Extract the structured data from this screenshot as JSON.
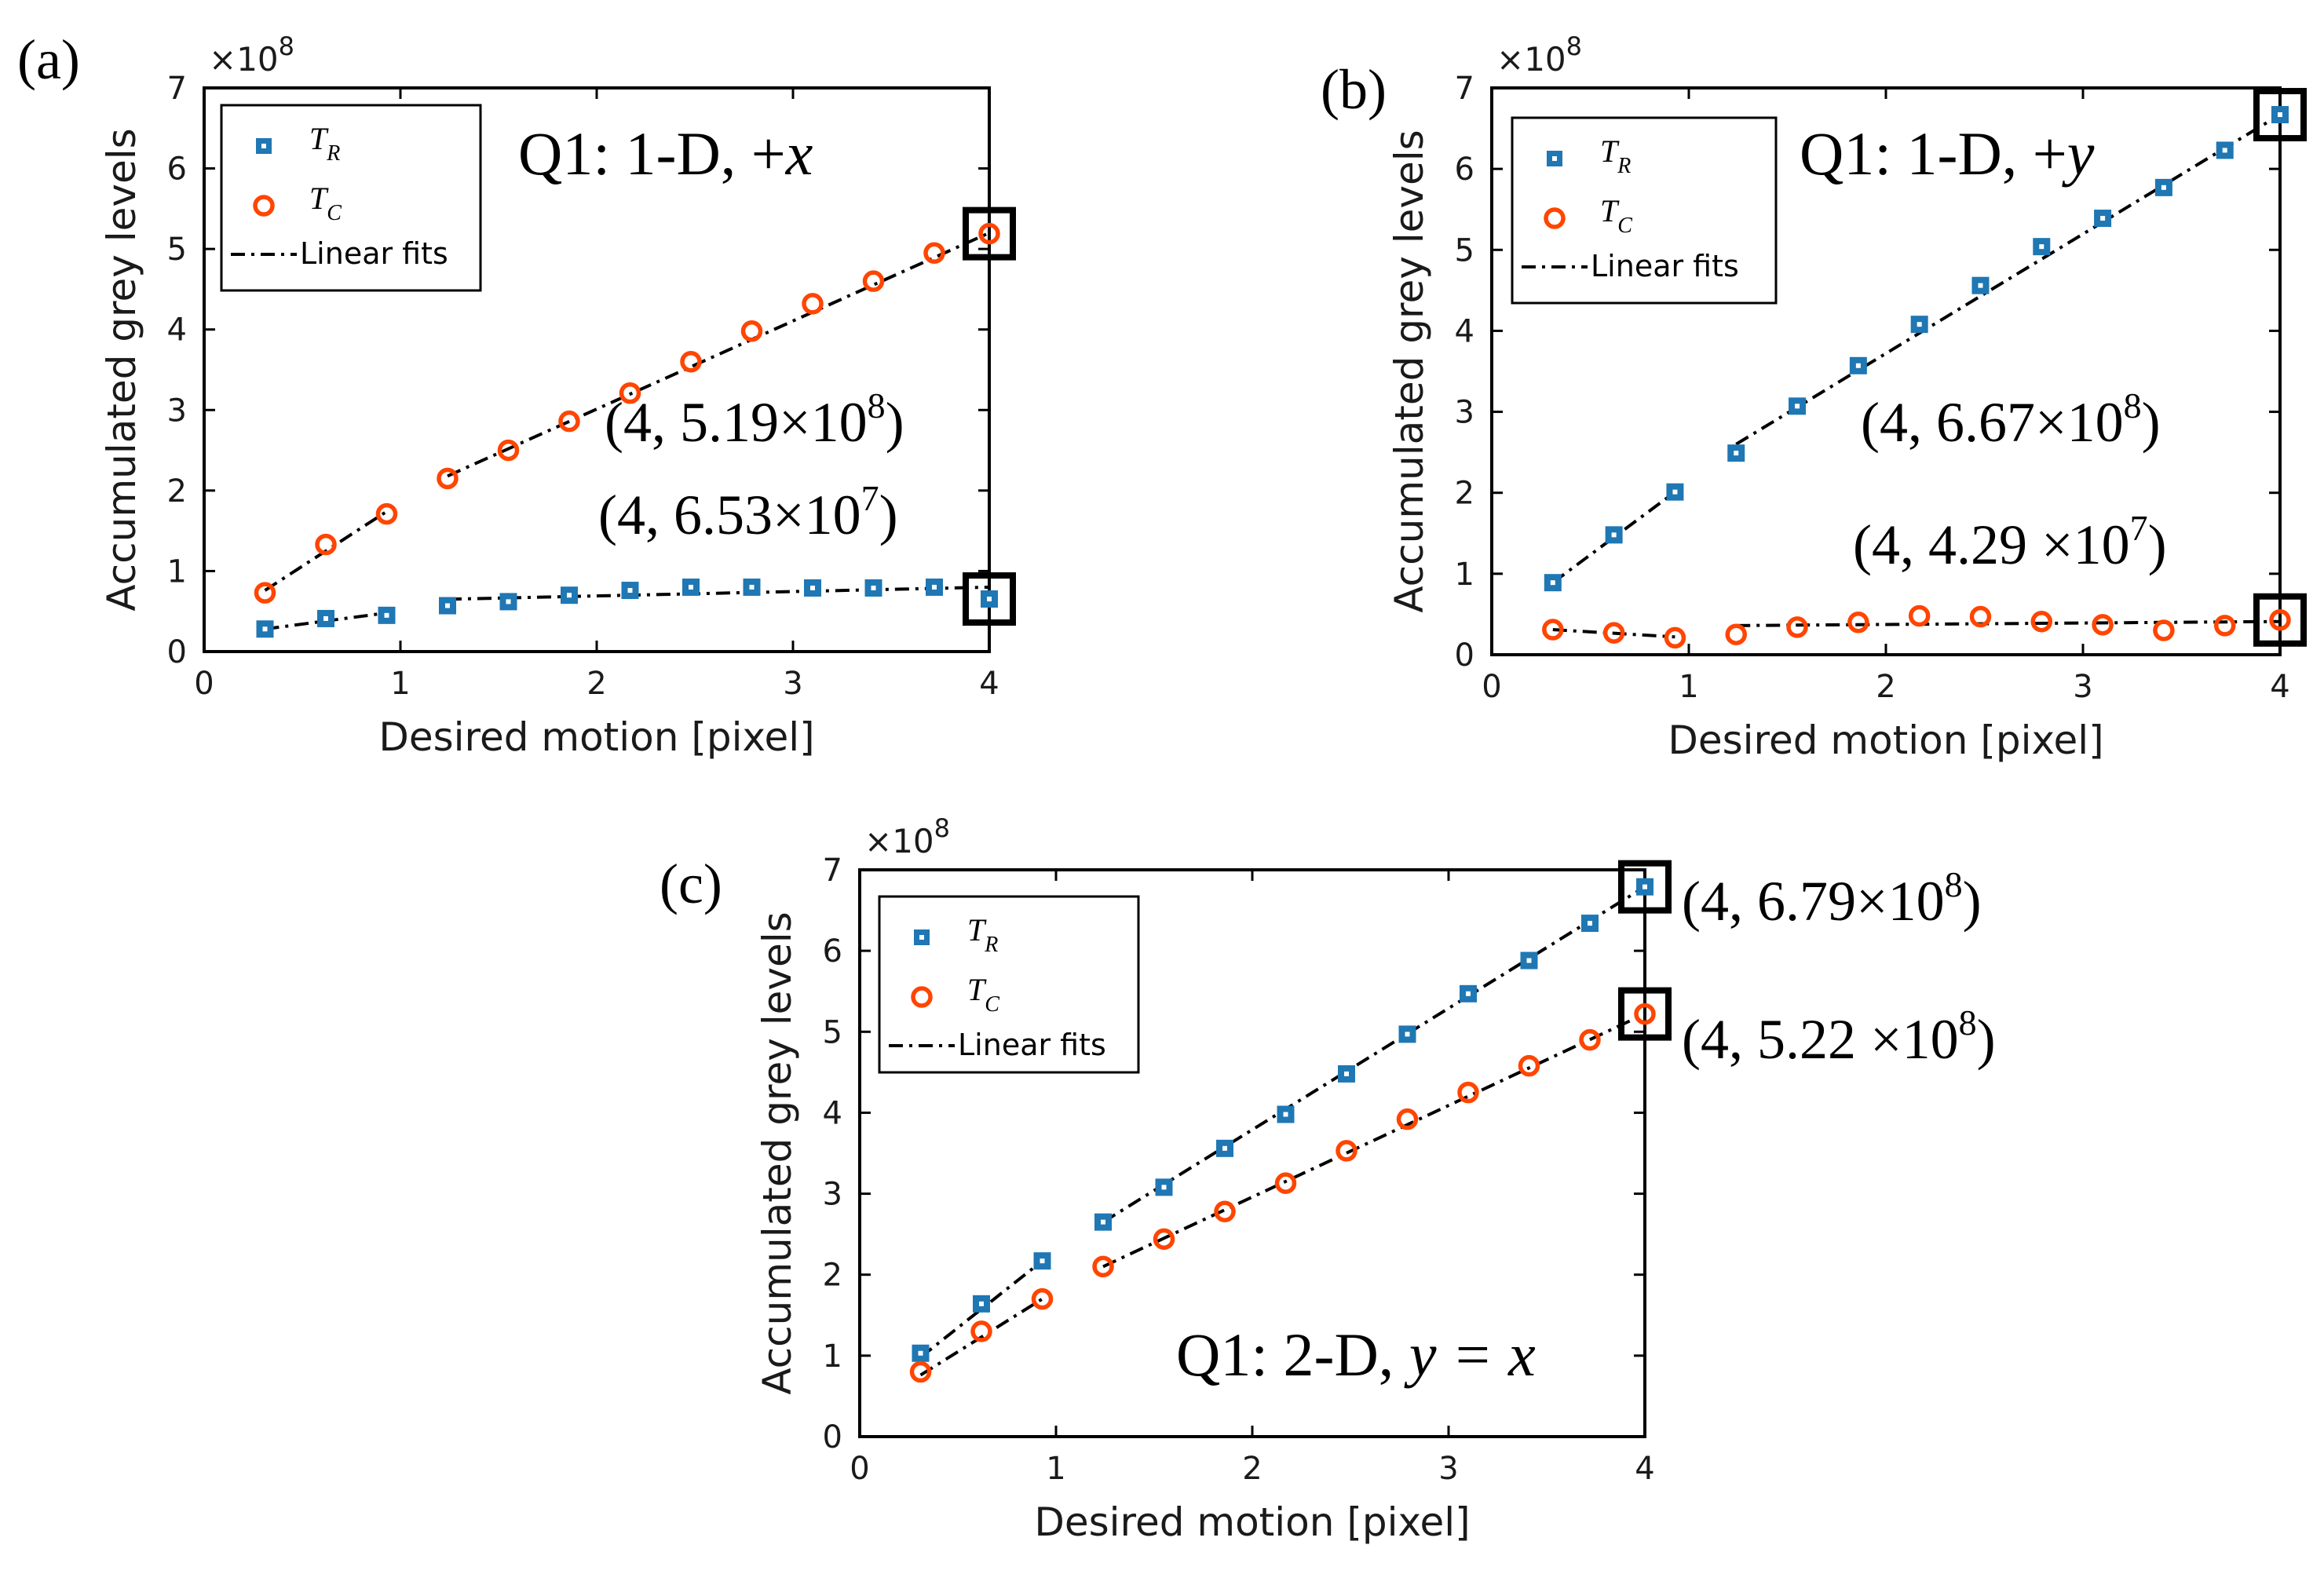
{
  "colors": {
    "tr": "#1f77b4",
    "tc": "#ff4500",
    "fit": "#000000",
    "axis": "#000000"
  },
  "chart_data": [
    {
      "id": "a",
      "type": "scatter",
      "panel_label": "(a)",
      "title": "Q1: 1-D, +x",
      "title_prefix": "Q1: 1-D, +",
      "title_var": "x",
      "xlabel": "Desired motion [pixel]",
      "ylabel": "Accumulated grey levels",
      "xlim": [
        0,
        4
      ],
      "ylim": [
        0,
        7
      ],
      "xticks": [
        0,
        1,
        2,
        3,
        4
      ],
      "yticks": [
        0,
        1,
        2,
        3,
        4,
        5,
        6,
        7
      ],
      "y_exponent": "×10",
      "y_exponent_power": "8",
      "legend": {
        "position": "top-left",
        "entries": [
          "T_R",
          "T_C",
          "Linear fits"
        ],
        "tr_main": "T",
        "tr_sub": "R",
        "tc_main": "T",
        "tc_sub": "C",
        "fit_label": "Linear fits"
      },
      "series": [
        {
          "name": "T_R",
          "x": [
            0.31,
            0.62,
            0.93,
            1.24,
            1.55,
            1.86,
            2.17,
            2.48,
            2.79,
            3.1,
            3.41,
            3.72,
            4.0
          ],
          "y": [
            0.28,
            0.41,
            0.45,
            0.57,
            0.62,
            0.7,
            0.76,
            0.8,
            0.8,
            0.79,
            0.79,
            0.8,
            0.653
          ]
        },
        {
          "name": "T_C",
          "x": [
            0.31,
            0.62,
            0.93,
            1.24,
            1.55,
            1.86,
            2.17,
            2.48,
            2.79,
            3.1,
            3.41,
            3.72,
            4.0
          ],
          "y": [
            0.73,
            1.33,
            1.71,
            2.15,
            2.5,
            2.86,
            3.21,
            3.6,
            3.98,
            4.32,
            4.6,
            4.95,
            5.19
          ]
        }
      ],
      "fits": [
        {
          "series": "T_R",
          "x": [
            0.31,
            0.93
          ],
          "y": [
            0.28,
            0.48
          ]
        },
        {
          "series": "T_R",
          "x": [
            1.24,
            4.0
          ],
          "y": [
            0.65,
            0.8
          ]
        },
        {
          "series": "T_C",
          "x": [
            0.31,
            0.93
          ],
          "y": [
            0.76,
            1.74
          ]
        },
        {
          "series": "T_C",
          "x": [
            1.24,
            4.0
          ],
          "y": [
            2.18,
            5.2
          ]
        }
      ],
      "highlights": [
        {
          "x": 4,
          "y": 5.19
        },
        {
          "x": 4,
          "y": 0.653
        }
      ],
      "annotations": [
        {
          "text": "(4, 5.19×10",
          "power": "8",
          "close": ")"
        },
        {
          "text": "(4, 6.53×10",
          "power": "7",
          "close": ")"
        }
      ]
    },
    {
      "id": "b",
      "type": "scatter",
      "panel_label": "(b)",
      "title": "Q1: 1-D, +y",
      "title_prefix": "Q1: 1-D, +",
      "title_var": "y",
      "xlabel": "Desired motion [pixel]",
      "ylabel": "Accumulated grey levels",
      "xlim": [
        0,
        4
      ],
      "ylim": [
        0,
        7
      ],
      "xticks": [
        0,
        1,
        2,
        3,
        4
      ],
      "yticks": [
        0,
        1,
        2,
        3,
        4,
        5,
        6,
        7
      ],
      "y_exponent": "×10",
      "y_exponent_power": "8",
      "legend": {
        "position": "top-left",
        "entries": [
          "T_R",
          "T_C",
          "Linear fits"
        ],
        "tr_main": "T",
        "tr_sub": "R",
        "tc_main": "T",
        "tc_sub": "C",
        "fit_label": "Linear fits"
      },
      "series": [
        {
          "name": "T_R",
          "x": [
            0.31,
            0.62,
            0.93,
            1.24,
            1.55,
            1.86,
            2.17,
            2.48,
            2.79,
            3.1,
            3.41,
            3.72,
            4.0
          ],
          "y": [
            0.89,
            1.48,
            2.01,
            2.49,
            3.07,
            3.57,
            4.08,
            4.56,
            5.04,
            5.39,
            5.77,
            6.23,
            6.67
          ]
        },
        {
          "name": "T_C",
          "x": [
            0.31,
            0.62,
            0.93,
            1.24,
            1.55,
            1.86,
            2.17,
            2.48,
            2.79,
            3.1,
            3.41,
            3.72,
            4.0
          ],
          "y": [
            0.31,
            0.27,
            0.21,
            0.25,
            0.34,
            0.4,
            0.48,
            0.47,
            0.41,
            0.37,
            0.3,
            0.36,
            0.429
          ]
        }
      ],
      "fits": [
        {
          "series": "T_R",
          "x": [
            0.31,
            0.93
          ],
          "y": [
            0.89,
            2.01
          ]
        },
        {
          "series": "T_R",
          "x": [
            1.24,
            4.0
          ],
          "y": [
            2.6,
            6.67
          ]
        },
        {
          "series": "T_C",
          "x": [
            0.31,
            0.93
          ],
          "y": [
            0.31,
            0.22
          ]
        },
        {
          "series": "T_C",
          "x": [
            1.24,
            4.0
          ],
          "y": [
            0.36,
            0.41
          ]
        }
      ],
      "highlights": [
        {
          "x": 4,
          "y": 6.67
        },
        {
          "x": 4,
          "y": 0.429
        }
      ],
      "annotations": [
        {
          "text": "(4, 6.67×10",
          "power": "8",
          "close": ")"
        },
        {
          "text": "(4, 4.29 ×10",
          "power": "7",
          "close": ")"
        }
      ]
    },
    {
      "id": "c",
      "type": "scatter",
      "panel_label": "(c)",
      "title": "Q1: 2-D, y = x",
      "title_prefix": "Q1: 2-D, ",
      "title_var": "y = x",
      "xlabel": "Desired motion [pixel]",
      "ylabel": "Accumulated grey levels",
      "xlim": [
        0,
        4
      ],
      "ylim": [
        0,
        7
      ],
      "xticks": [
        0,
        1,
        2,
        3,
        4
      ],
      "yticks": [
        0,
        1,
        2,
        3,
        4,
        5,
        6,
        7
      ],
      "y_exponent": "×10",
      "y_exponent_power": "8",
      "legend": {
        "position": "top-left",
        "entries": [
          "T_R",
          "T_C",
          "Linear fits"
        ],
        "tr_main": "T",
        "tr_sub": "R",
        "tc_main": "T",
        "tc_sub": "C",
        "fit_label": "Linear fits"
      },
      "series": [
        {
          "name": "T_R",
          "x": [
            0.31,
            0.62,
            0.93,
            1.24,
            1.55,
            1.86,
            2.17,
            2.48,
            2.79,
            3.1,
            3.41,
            3.72,
            4.0
          ],
          "y": [
            1.03,
            1.64,
            2.17,
            2.65,
            3.08,
            3.56,
            3.98,
            4.48,
            4.97,
            5.47,
            5.88,
            6.34,
            6.79
          ]
        },
        {
          "name": "T_C",
          "x": [
            0.31,
            0.62,
            0.93,
            1.24,
            1.55,
            1.86,
            2.17,
            2.48,
            2.79,
            3.1,
            3.41,
            3.72,
            4.0
          ],
          "y": [
            0.8,
            1.3,
            1.7,
            2.1,
            2.44,
            2.78,
            3.13,
            3.53,
            3.92,
            4.25,
            4.58,
            4.9,
            5.22
          ]
        }
      ],
      "fits": [
        {
          "series": "T_R",
          "x": [
            0.31,
            0.93
          ],
          "y": [
            0.98,
            2.17
          ]
        },
        {
          "series": "T_R",
          "x": [
            1.24,
            4.0
          ],
          "y": [
            2.65,
            6.79
          ]
        },
        {
          "series": "T_C",
          "x": [
            0.31,
            0.93
          ],
          "y": [
            0.76,
            1.7
          ]
        },
        {
          "series": "T_C",
          "x": [
            1.24,
            4.0
          ],
          "y": [
            2.1,
            5.22
          ]
        }
      ],
      "highlights": [
        {
          "x": 4,
          "y": 6.79
        },
        {
          "x": 4,
          "y": 5.22
        }
      ],
      "annotations": [
        {
          "text": "(4, 6.79×10",
          "power": "8",
          "close": ")"
        },
        {
          "text": "(4, 5.22 ×10",
          "power": "8",
          "close": ")"
        }
      ]
    }
  ]
}
